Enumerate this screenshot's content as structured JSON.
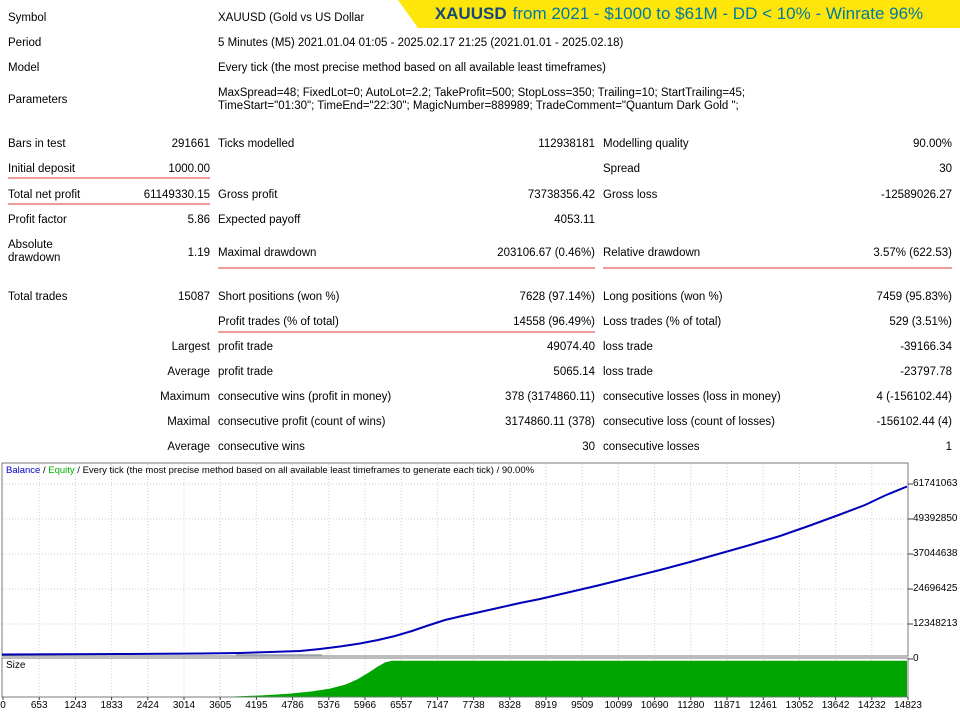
{
  "banner": {
    "symbol": "XAUUSD",
    "subtitle": "from 2021 - $1000 to $61M - DD < 10% - Winrate 96%",
    "bg_color": "#ffe60a",
    "symbol_color": "#15497b",
    "text_color": "#0079a5"
  },
  "info": {
    "rows": [
      {
        "label": "Symbol",
        "value": "XAUUSD (Gold vs US Dollar"
      },
      {
        "label": "Period",
        "value": "5 Minutes (M5) 2021.01.04 01:05 - 2025.02.17 21:25 (2021.01.01 - 2025.02.18)"
      },
      {
        "label": "Model",
        "value": "Every tick (the most precise method based on all available least timeframes)"
      },
      {
        "label": "Parameters",
        "value": "MaxSpread=48; FixedLot=0; AutoLot=2.2; TakeProfit=500; StopLoss=350; Trailing=10; StartTrailing=45; TimeStart=\"01:30\"; TimeEnd=\"22:30\"; MagicNumber=889989; TradeComment=\"Quantum Dark Gold \";"
      }
    ]
  },
  "stats": {
    "rows": [
      {
        "al": "Bars in test",
        "av": "291661",
        "bl": "Ticks modelled",
        "bv": "112938181",
        "cl": "Modelling quality",
        "cv": "90.00%"
      },
      {
        "al": "Initial deposit",
        "av": "1000.00",
        "bl": "",
        "bv": "",
        "cl": "Spread",
        "cv": "30"
      },
      {
        "al": "Total net profit",
        "av": "61149330.15",
        "bl": "Gross profit",
        "bv": "73738356.42",
        "cl": "Gross loss",
        "cv": "-12589026.27"
      },
      {
        "al": "Profit factor",
        "av": "5.86",
        "bl": "Expected payoff",
        "bv": "4053.11",
        "cl": "",
        "cv": ""
      },
      {
        "al": "Absolute drawdown",
        "av": "1.19",
        "bl": "Maximal drawdown",
        "bv": "203106.67 (0.46%)",
        "cl": "Relative drawdown",
        "cv": "3.57% (622.53)"
      },
      {
        "al": "Total trades",
        "av": "15087",
        "bl": "Short positions (won %)",
        "bv": "7628 (97.14%)",
        "cl": "Long positions (won %)",
        "cv": "7459 (95.83%)"
      },
      {
        "al": "",
        "av": "",
        "bl": "Profit trades (% of total)",
        "bv": "14558 (96.49%)",
        "cl": "Loss trades (% of total)",
        "cv": "529 (3.51%)"
      },
      {
        "al": "",
        "av": "Largest",
        "bl": "profit trade",
        "bv": "49074.40",
        "cl": "loss trade",
        "cv": "-39166.34"
      },
      {
        "al": "",
        "av": "Average",
        "bl": "profit trade",
        "bv": "5065.14",
        "cl": "loss trade",
        "cv": "-23797.78"
      },
      {
        "al": "",
        "av": "Maximum",
        "bl": "consecutive wins (profit in money)",
        "bv": "378 (3174860.11)",
        "cl": "consecutive losses (loss in money)",
        "cv": "4 (-156102.44)"
      },
      {
        "al": "",
        "av": "Maximal",
        "bl": "consecutive profit (count of wins)",
        "bv": "3174860.11 (378)",
        "cl": "consecutive loss (count of losses)",
        "cv": "-156102.44 (4)"
      },
      {
        "al": "",
        "av": "Average",
        "bl": "consecutive wins",
        "bv": "30",
        "cl": "consecutive losses",
        "cv": "1"
      }
    ]
  },
  "chart": {
    "legend": {
      "balance": "Balance",
      "sep": " / ",
      "equity": "Equity",
      "rest": " / Every tick (the most precise method based on all available least timeframes to generate each tick) / 90.00%"
    },
    "size_label": "Size",
    "y_labels": [
      "61741063",
      "49392850",
      "37044638",
      "24696425",
      "12348213",
      "0"
    ],
    "x_ticks": [
      "0",
      "653",
      "1243",
      "1833",
      "2424",
      "3014",
      "3605",
      "4195",
      "4786",
      "5376",
      "5966",
      "6557",
      "7147",
      "7738",
      "8328",
      "8919",
      "9509",
      "10099",
      "10690",
      "11280",
      "11871",
      "12461",
      "13052",
      "13642",
      "14232",
      "14823"
    ]
  },
  "chart_data": {
    "type": "line",
    "title": "Balance / Equity / Every tick (the most precise method based on all available least timeframes to generate each tick) / 90.00%",
    "xlabel": "",
    "ylabel": "",
    "x_range": [
      0,
      15087
    ],
    "ylim": [
      0,
      61741063
    ],
    "y_ticks": [
      0,
      12348213,
      24696425,
      37044638,
      49392850,
      61741063
    ],
    "x_ticks": [
      0,
      653,
      1243,
      1833,
      2424,
      3014,
      3605,
      4195,
      4786,
      5376,
      5966,
      6557,
      7147,
      7738,
      8328,
      8919,
      9509,
      10099,
      10690,
      11280,
      11871,
      12461,
      13052,
      13642,
      14232,
      14823
    ],
    "grid": true,
    "legend_position": "top-left",
    "series": [
      {
        "name": "Balance",
        "color": "#0000b8",
        "x": [
          0,
          2000,
          4000,
          4800,
          5600,
          6400,
          7000,
          7500,
          8800,
          10700,
          12700,
          13700,
          14400,
          15087
        ],
        "values": [
          1000,
          45000,
          900000,
          2800000,
          4900000,
          10000000,
          13000000,
          15200000,
          21200000,
          31400000,
          43400000,
          51200000,
          56500000,
          61741063
        ]
      },
      {
        "name": "Equity",
        "color": "#00b400",
        "note": "equity curve overlaps balance curve at this scale"
      }
    ],
    "size_panel": {
      "name": "Size",
      "color": "#00a400",
      "x": [
        0,
        3700,
        4300,
        4900,
        5300,
        5600,
        5900,
        6100,
        6300,
        6450,
        15087
      ],
      "values_normalized": [
        0,
        0.01,
        0.05,
        0.12,
        0.22,
        0.35,
        0.55,
        0.75,
        0.92,
        1.0,
        1.0
      ]
    }
  }
}
